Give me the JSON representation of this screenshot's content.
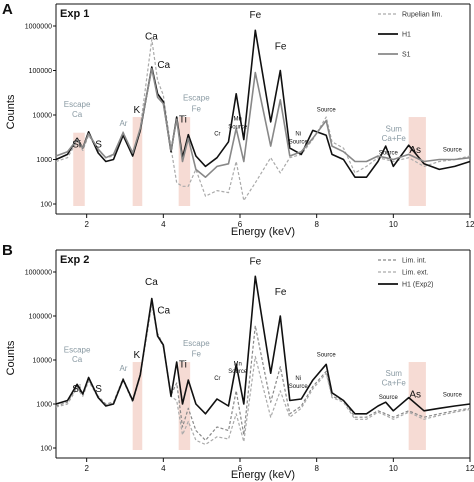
{
  "chart_data": [
    {
      "panel": "A",
      "type": "line",
      "title": "Exp 1",
      "xlabel": "Energy (keV)",
      "ylabel": "Counts",
      "xlim": [
        1.2,
        12
      ],
      "ylim": [
        100,
        1000000
      ],
      "log_y": true,
      "x_ticks": [
        2,
        4,
        6,
        8,
        10,
        12
      ],
      "y_ticks": [
        100,
        1000,
        10000,
        100000,
        1000000
      ],
      "legend_position": "top-right",
      "series": [
        {
          "name": "Rupelian lim.",
          "color": "#aaaaaa",
          "style": "dashed",
          "x": [
            1.2,
            1.5,
            1.75,
            1.9,
            2.05,
            2.3,
            2.5,
            2.7,
            2.95,
            3.2,
            3.4,
            3.7,
            3.85,
            4.0,
            4.2,
            4.35,
            4.5,
            4.65,
            4.85,
            5.1,
            5.4,
            5.7,
            5.9,
            6.1,
            6.4,
            6.8,
            7.05,
            7.3,
            7.6,
            7.9,
            8.25,
            8.4,
            8.7,
            9.0,
            9.3,
            9.6,
            9.8,
            10.0,
            10.4,
            10.8,
            11.2,
            11.6,
            12.0
          ],
          "y": [
            900,
            1100,
            2600,
            1600,
            3500,
            1600,
            1100,
            1200,
            4200,
            1300,
            5200,
            500000,
            60000,
            28000,
            1800,
            300,
            250,
            250,
            600,
            150,
            200,
            180,
            900,
            120,
            300,
            1100,
            500,
            1100,
            1300,
            2800,
            9000,
            2500,
            1800,
            500,
            700,
            1100,
            1000,
            900,
            1100,
            700,
            900,
            1000,
            1200
          ]
        },
        {
          "name": "H1",
          "color": "#111111",
          "style": "solid",
          "x": [
            1.2,
            1.5,
            1.75,
            1.9,
            2.05,
            2.3,
            2.5,
            2.7,
            2.95,
            3.2,
            3.4,
            3.7,
            3.85,
            4.0,
            4.2,
            4.35,
            4.5,
            4.65,
            4.85,
            5.1,
            5.4,
            5.7,
            5.9,
            6.1,
            6.4,
            6.8,
            7.05,
            7.3,
            7.6,
            7.9,
            8.25,
            8.4,
            8.7,
            9.0,
            9.3,
            9.6,
            9.8,
            10.0,
            10.4,
            10.8,
            11.2,
            11.6,
            12.0
          ],
          "y": [
            1000,
            1300,
            3000,
            1800,
            4200,
            1400,
            900,
            1000,
            3500,
            1200,
            4500,
            120000,
            30000,
            20000,
            1500,
            9000,
            1100,
            3600,
            1200,
            700,
            1100,
            2500,
            30000,
            2800,
            800000,
            7000,
            100000,
            1800,
            1300,
            4500,
            3500,
            1300,
            1000,
            400,
            400,
            900,
            2000,
            700,
            2100,
            800,
            600,
            700,
            900
          ]
        },
        {
          "name": "S1",
          "color": "#888888",
          "style": "solid",
          "x": [
            1.2,
            1.5,
            1.75,
            1.9,
            2.05,
            2.3,
            2.5,
            2.7,
            2.95,
            3.2,
            3.4,
            3.7,
            3.85,
            4.0,
            4.2,
            4.35,
            4.5,
            4.65,
            4.85,
            5.1,
            5.4,
            5.7,
            5.9,
            6.1,
            6.4,
            6.8,
            7.05,
            7.3,
            7.6,
            7.9,
            8.25,
            8.4,
            8.7,
            9.0,
            9.3,
            9.6,
            9.8,
            10.0,
            10.4,
            10.8,
            11.2,
            11.6,
            12.0
          ],
          "y": [
            1200,
            1500,
            2800,
            1800,
            3800,
            1700,
            1100,
            1300,
            4000,
            1400,
            5000,
            110000,
            25000,
            18000,
            1600,
            8000,
            900,
            3000,
            600,
            400,
            700,
            800,
            5000,
            900,
            90000,
            2000,
            22000,
            1200,
            1500,
            3000,
            7500,
            2000,
            1500,
            900,
            900,
            1200,
            1100,
            1000,
            1300,
            900,
            1000,
            1000,
            1100
          ]
        }
      ],
      "annotations": [
        {
          "text": "Escape",
          "x": 1.75,
          "y": 15000,
          "color": "gray"
        },
        {
          "text": "Ca",
          "x": 1.75,
          "y": 9000,
          "color": "gray"
        },
        {
          "text": "Si",
          "x": 1.74,
          "y": 1850
        },
        {
          "text": "S",
          "x": 2.31,
          "y": 1850
        },
        {
          "text": "Ar",
          "x": 2.96,
          "y": 5600,
          "color": "gray"
        },
        {
          "text": "K",
          "x": 3.31,
          "y": 11000
        },
        {
          "text": "Ca",
          "x": 3.69,
          "y": 500000
        },
        {
          "text": "Ca",
          "x": 4.01,
          "y": 115000
        },
        {
          "text": "Ti",
          "x": 4.51,
          "y": 6800
        },
        {
          "text": "Escape",
          "x": 4.86,
          "y": 21000,
          "color": "gray"
        },
        {
          "text": "Fe",
          "x": 4.86,
          "y": 12000,
          "color": "gray"
        },
        {
          "text": "Cr",
          "x": 5.41,
          "y": 3500,
          "small": true
        },
        {
          "text": "Mn",
          "x": 5.94,
          "y": 7500,
          "small": true
        },
        {
          "text": "Source",
          "x": 5.94,
          "y": 5000,
          "small": true
        },
        {
          "text": "Fe",
          "x": 6.4,
          "y": 1500000
        },
        {
          "text": "Fe",
          "x": 7.06,
          "y": 300000
        },
        {
          "text": "Ni",
          "x": 7.52,
          "y": 3500,
          "small": true
        },
        {
          "text": "Source",
          "x": 7.52,
          "y": 2300,
          "small": true
        },
        {
          "text": "Source",
          "x": 8.25,
          "y": 12000,
          "small": true
        },
        {
          "text": "Sum",
          "x": 10.01,
          "y": 4300,
          "color": "gray"
        },
        {
          "text": "Ca+Fe",
          "x": 10.01,
          "y": 2600,
          "color": "gray"
        },
        {
          "text": "Source",
          "x": 9.87,
          "y": 1300,
          "small": true
        },
        {
          "text": "As",
          "x": 10.57,
          "y": 1400
        },
        {
          "text": "Source",
          "x": 11.54,
          "y": 1500,
          "small": true
        }
      ],
      "highlights": [
        [
          1.65,
          1.95
        ],
        [
          3.2,
          3.45
        ],
        [
          4.4,
          4.7
        ],
        [
          10.4,
          10.85
        ]
      ]
    },
    {
      "panel": "B",
      "type": "line",
      "title": "Exp 2",
      "xlabel": "Energy (keV)",
      "ylabel": "Counts",
      "xlim": [
        1.2,
        12
      ],
      "ylim": [
        100,
        1000000
      ],
      "log_y": true,
      "x_ticks": [
        2,
        4,
        6,
        8,
        10,
        12
      ],
      "y_ticks": [
        100,
        1000,
        10000,
        100000,
        1000000
      ],
      "legend_position": "top-right",
      "series": [
        {
          "name": "Lim. int.",
          "color": "#888888",
          "style": "dashed",
          "x": [
            1.2,
            1.5,
            1.75,
            1.9,
            2.05,
            2.3,
            2.5,
            2.7,
            2.95,
            3.2,
            3.4,
            3.7,
            3.85,
            4.0,
            4.2,
            4.35,
            4.5,
            4.65,
            4.85,
            5.1,
            5.4,
            5.7,
            5.9,
            6.1,
            6.4,
            6.8,
            7.05,
            7.3,
            7.6,
            7.9,
            8.25,
            8.4,
            8.7,
            9.0,
            9.3,
            9.6,
            9.8,
            10.0,
            10.4,
            10.8,
            11.2,
            11.6,
            12.0
          ],
          "y": [
            900,
            1100,
            2500,
            1600,
            3600,
            1500,
            1000,
            1100,
            3800,
            1200,
            4800,
            200000,
            40000,
            22000,
            1600,
            3000,
            300,
            800,
            250,
            150,
            300,
            250,
            2000,
            200,
            60000,
            1100,
            7000,
            600,
            900,
            2500,
            5500,
            1500,
            1200,
            500,
            500,
            700,
            600,
            500,
            700,
            500,
            600,
            700,
            800
          ]
        },
        {
          "name": "Lim. ext.",
          "color": "#aaaaaa",
          "style": "dashed",
          "x": [
            1.2,
            1.5,
            1.75,
            1.9,
            2.05,
            2.3,
            2.5,
            2.7,
            2.95,
            3.2,
            3.4,
            3.7,
            3.85,
            4.0,
            4.2,
            4.35,
            4.5,
            4.65,
            4.85,
            5.1,
            5.4,
            5.7,
            5.9,
            6.1,
            6.4,
            6.8,
            7.05,
            7.3,
            7.6,
            7.9,
            8.25,
            8.4,
            8.7,
            9.0,
            9.3,
            9.6,
            9.8,
            10.0,
            10.4,
            10.8,
            11.2,
            11.6,
            12.0
          ],
          "y": [
            850,
            1000,
            2300,
            1500,
            3300,
            1400,
            950,
            1050,
            3500,
            1100,
            4400,
            180000,
            36000,
            20000,
            1500,
            1200,
            200,
            400,
            150,
            120,
            180,
            160,
            600,
            140,
            12000,
            500,
            2000,
            500,
            800,
            2200,
            5000,
            1400,
            1100,
            450,
            450,
            650,
            550,
            450,
            650,
            450,
            550,
            650,
            750
          ]
        },
        {
          "name": "H1 (Exp2)",
          "color": "#111111",
          "style": "solid",
          "x": [
            1.2,
            1.5,
            1.75,
            1.9,
            2.05,
            2.3,
            2.5,
            2.7,
            2.95,
            3.2,
            3.4,
            3.7,
            3.85,
            4.0,
            4.2,
            4.35,
            4.5,
            4.65,
            4.85,
            5.1,
            5.4,
            5.7,
            5.9,
            6.1,
            6.4,
            6.8,
            7.05,
            7.3,
            7.6,
            7.9,
            8.25,
            8.4,
            8.7,
            9.0,
            9.3,
            9.6,
            9.8,
            10.0,
            10.4,
            10.8,
            11.2,
            11.6,
            12.0
          ],
          "y": [
            1000,
            1200,
            2800,
            1700,
            4000,
            1400,
            900,
            1000,
            3600,
            1200,
            4600,
            250000,
            35000,
            22000,
            1500,
            9000,
            1000,
            3500,
            1000,
            600,
            1300,
            900,
            8000,
            1000,
            800000,
            5000,
            100000,
            1200,
            1300,
            3500,
            8000,
            1800,
            1200,
            600,
            600,
            900,
            1100,
            700,
            1400,
            700,
            800,
            900,
            1000
          ]
        }
      ],
      "annotations": [
        {
          "text": "Escape",
          "x": 1.75,
          "y": 15000,
          "color": "gray"
        },
        {
          "text": "Ca",
          "x": 1.75,
          "y": 9000,
          "color": "gray"
        },
        {
          "text": "Si",
          "x": 1.74,
          "y": 1850
        },
        {
          "text": "S",
          "x": 2.31,
          "y": 1850
        },
        {
          "text": "Ar",
          "x": 2.96,
          "y": 5600,
          "color": "gray"
        },
        {
          "text": "K",
          "x": 3.31,
          "y": 11000
        },
        {
          "text": "Ca",
          "x": 3.69,
          "y": 500000
        },
        {
          "text": "Ca",
          "x": 4.01,
          "y": 115000
        },
        {
          "text": "Ti",
          "x": 4.51,
          "y": 6800
        },
        {
          "text": "Escape",
          "x": 4.86,
          "y": 21000,
          "color": "gray"
        },
        {
          "text": "Fe",
          "x": 4.86,
          "y": 12000,
          "color": "gray"
        },
        {
          "text": "Cr",
          "x": 5.41,
          "y": 3500,
          "small": true
        },
        {
          "text": "Mn",
          "x": 5.94,
          "y": 7500,
          "small": true
        },
        {
          "text": "Source",
          "x": 5.94,
          "y": 5000,
          "small": true
        },
        {
          "text": "Fe",
          "x": 6.4,
          "y": 1500000
        },
        {
          "text": "Fe",
          "x": 7.06,
          "y": 300000
        },
        {
          "text": "Ni",
          "x": 7.52,
          "y": 3500,
          "small": true
        },
        {
          "text": "Source",
          "x": 7.52,
          "y": 2300,
          "small": true
        },
        {
          "text": "Source",
          "x": 8.25,
          "y": 12000,
          "small": true
        },
        {
          "text": "Sum",
          "x": 10.01,
          "y": 4300,
          "color": "gray"
        },
        {
          "text": "Ca+Fe",
          "x": 10.01,
          "y": 2600,
          "color": "gray"
        },
        {
          "text": "Source",
          "x": 9.87,
          "y": 1300,
          "small": true
        },
        {
          "text": "As",
          "x": 10.57,
          "y": 1400
        },
        {
          "text": "Source",
          "x": 11.54,
          "y": 1500,
          "small": true
        }
      ],
      "highlights": [
        [
          3.2,
          3.45
        ],
        [
          4.4,
          4.7
        ],
        [
          10.4,
          10.85
        ]
      ]
    }
  ]
}
